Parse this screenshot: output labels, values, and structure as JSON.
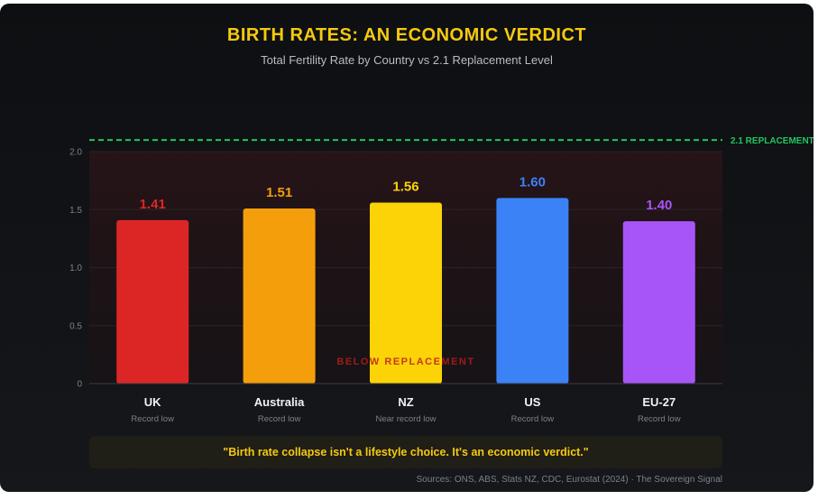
{
  "header": {
    "title": "BIRTH RATES: AN ECONOMIC VERDICT",
    "subtitle": "Total Fertility Rate by Country vs 2.1 Replacement Level"
  },
  "chart_data": {
    "type": "bar",
    "categories": [
      "UK",
      "Australia",
      "NZ",
      "US",
      "EU-27"
    ],
    "notes": [
      "Record low",
      "Record low",
      "Near record low",
      "Record low",
      "Record low"
    ],
    "values": [
      1.41,
      1.51,
      1.56,
      1.6,
      1.4
    ],
    "value_labels": [
      "1.41",
      "1.51",
      "1.56",
      "1.60",
      "1.40"
    ],
    "colors": [
      "#dc2626",
      "#f59e0b",
      "#fcd307",
      "#3b82f6",
      "#a855f7"
    ],
    "ylim": [
      0,
      2.0
    ],
    "yticks": [
      0,
      0.5,
      1.0,
      1.5,
      2.0
    ],
    "ytick_labels": [
      "0",
      "0.5",
      "1.0",
      "1.5",
      "2.0"
    ],
    "grid": true,
    "reference_line": {
      "value": 2.1,
      "label": "2.1 REPLACEMENT",
      "color": "#22c55e"
    },
    "zone_label": "BELOW REPLACEMENT"
  },
  "footer": {
    "quote": "\"Birth rate collapse isn't a lifestyle choice. It's an economic verdict.\"",
    "sources": "Sources: ONS, ABS, Stats NZ, CDC, Eurostat (2024) · The Sovereign Signal"
  }
}
